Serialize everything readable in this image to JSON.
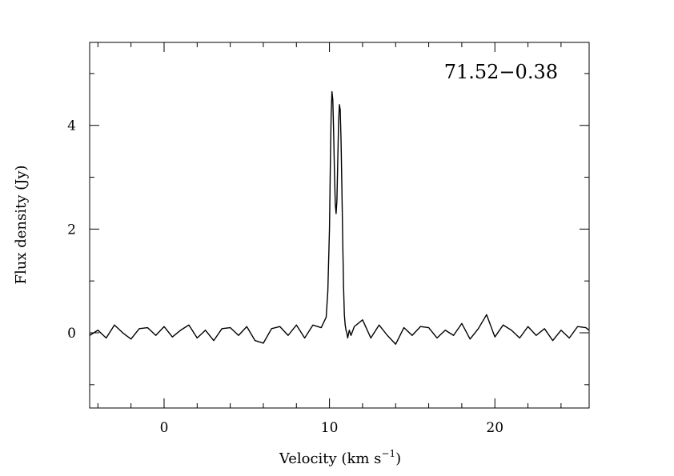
{
  "chart_data": {
    "type": "line",
    "source_label": "71.52−0.38",
    "xlabel": "Velocity (km s",
    "xlabel_sup": "−1",
    "xlabel_close": ")",
    "ylabel": "Flux density (Jy)",
    "xlim": [
      -4.5,
      25.7
    ],
    "ylim": [
      -1.45,
      5.6
    ],
    "x_ticks": [
      {
        "value": 0,
        "label": "0"
      },
      {
        "value": 10,
        "label": "10"
      },
      {
        "value": 20,
        "label": "20"
      }
    ],
    "y_ticks": [
      {
        "value": 0,
        "label": "0"
      },
      {
        "value": 2,
        "label": "2"
      },
      {
        "value": 4,
        "label": "4"
      }
    ],
    "x_minor_step": 2,
    "y_minor_step": 1,
    "grid": false,
    "legend": "none",
    "series": [
      {
        "line_color": "#000000",
        "x": [
          -4.5,
          -4.0,
          -3.5,
          -3.0,
          -2.5,
          -2.0,
          -1.5,
          -1.0,
          -0.5,
          0.0,
          0.5,
          1.0,
          1.5,
          2.0,
          2.5,
          3.0,
          3.5,
          4.0,
          4.5,
          5.0,
          5.5,
          6.0,
          6.5,
          7.0,
          7.5,
          8.0,
          8.5,
          9.0,
          9.5,
          9.8,
          9.9,
          10.0,
          10.05,
          10.1,
          10.15,
          10.2,
          10.25,
          10.3,
          10.35,
          10.4,
          10.45,
          10.5,
          10.55,
          10.6,
          10.65,
          10.7,
          10.75,
          10.8,
          10.85,
          10.9,
          10.95,
          11.0,
          11.05,
          11.1,
          11.2,
          11.3,
          11.5,
          12.0,
          12.5,
          13.0,
          13.5,
          14.0,
          14.5,
          15.0,
          15.5,
          16.0,
          16.5,
          17.0,
          17.5,
          18.0,
          18.5,
          19.0,
          19.5,
          20.0,
          20.5,
          21.0,
          21.5,
          22.0,
          22.5,
          23.0,
          23.5,
          24.0,
          24.5,
          25.0,
          25.5,
          25.7
        ],
        "values": [
          -0.05,
          0.05,
          -0.1,
          0.15,
          0.0,
          -0.12,
          0.08,
          0.1,
          -0.05,
          0.12,
          -0.08,
          0.05,
          0.15,
          -0.1,
          0.05,
          -0.15,
          0.08,
          0.1,
          -0.05,
          0.12,
          -0.15,
          -0.2,
          0.08,
          0.12,
          -0.05,
          0.15,
          -0.1,
          0.15,
          0.1,
          0.3,
          0.8,
          2.0,
          3.2,
          4.2,
          4.65,
          4.5,
          3.9,
          3.1,
          2.5,
          2.3,
          2.55,
          3.3,
          4.05,
          4.4,
          4.3,
          3.7,
          2.8,
          1.8,
          0.9,
          0.35,
          0.15,
          0.05,
          0.0,
          -0.1,
          0.05,
          -0.05,
          0.12,
          0.25,
          -0.1,
          0.15,
          -0.05,
          -0.22,
          0.1,
          -0.05,
          0.12,
          0.1,
          -0.1,
          0.05,
          -0.05,
          0.18,
          -0.12,
          0.08,
          0.35,
          -0.08,
          0.15,
          0.05,
          -0.1,
          0.12,
          -0.05,
          0.08,
          -0.15,
          0.05,
          -0.1,
          0.12,
          0.1,
          0.05
        ]
      }
    ]
  }
}
